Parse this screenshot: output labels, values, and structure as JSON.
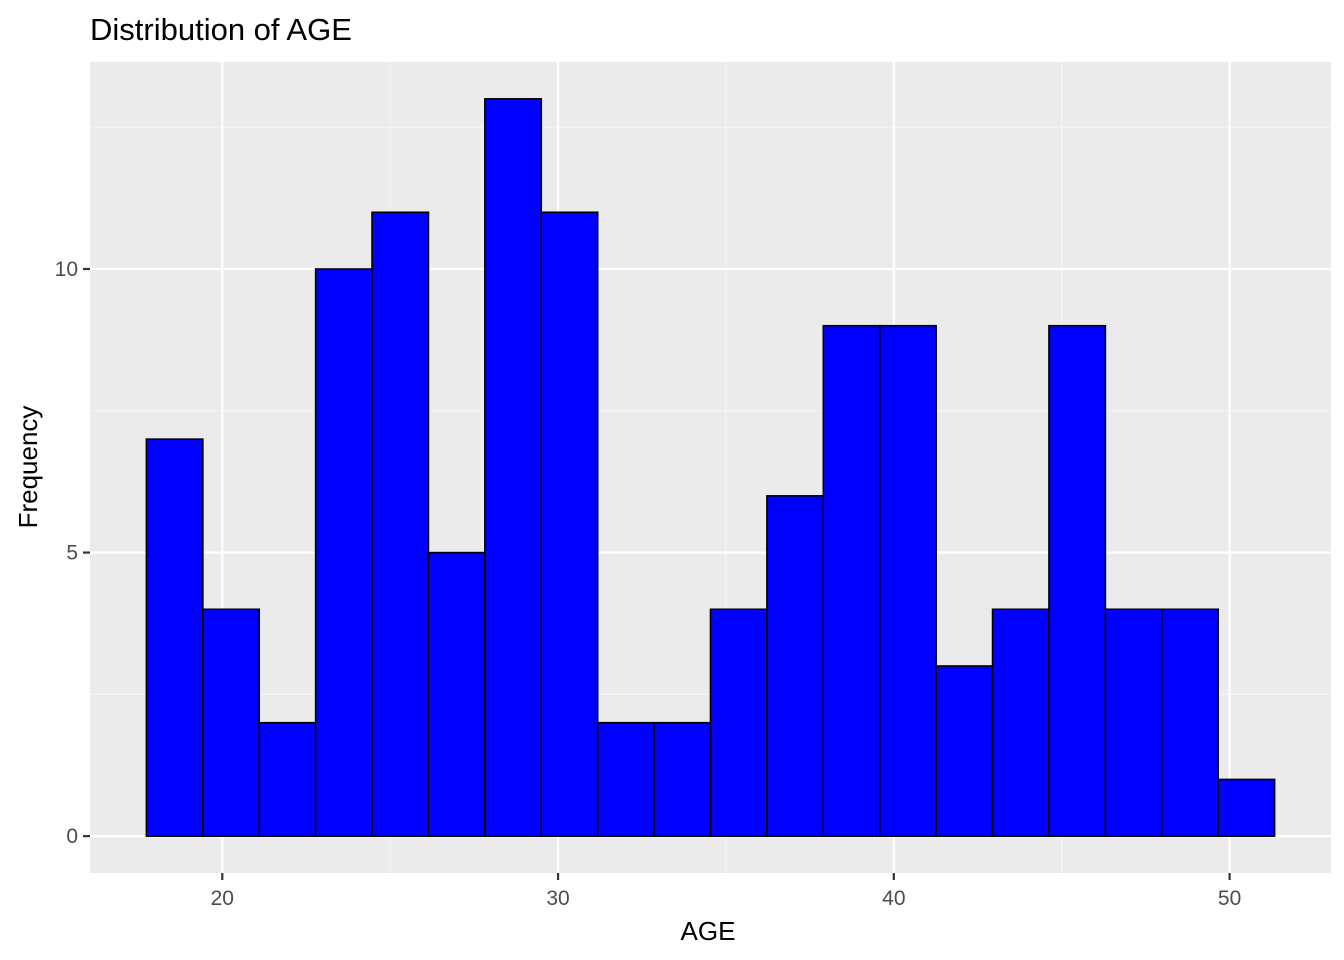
{
  "chart_data": {
    "type": "bar",
    "title": "Distribution of AGE",
    "xlabel": "AGE",
    "ylabel": "Frequency",
    "bins": [
      {
        "start": 17.74,
        "end": 19.42,
        "count": 7
      },
      {
        "start": 19.42,
        "end": 21.1,
        "count": 4
      },
      {
        "start": 21.1,
        "end": 22.78,
        "count": 2
      },
      {
        "start": 22.78,
        "end": 24.46,
        "count": 10
      },
      {
        "start": 24.46,
        "end": 26.14,
        "count": 11
      },
      {
        "start": 26.14,
        "end": 27.82,
        "count": 5
      },
      {
        "start": 27.82,
        "end": 29.5,
        "count": 13
      },
      {
        "start": 29.5,
        "end": 31.18,
        "count": 11
      },
      {
        "start": 31.18,
        "end": 32.86,
        "count": 2
      },
      {
        "start": 32.86,
        "end": 34.54,
        "count": 2
      },
      {
        "start": 34.54,
        "end": 36.22,
        "count": 4
      },
      {
        "start": 36.22,
        "end": 37.9,
        "count": 6
      },
      {
        "start": 37.9,
        "end": 39.58,
        "count": 9
      },
      {
        "start": 39.58,
        "end": 41.26,
        "count": 9
      },
      {
        "start": 41.26,
        "end": 42.94,
        "count": 3
      },
      {
        "start": 42.94,
        "end": 44.62,
        "count": 4
      },
      {
        "start": 44.62,
        "end": 46.3,
        "count": 9
      },
      {
        "start": 46.3,
        "end": 47.98,
        "count": 4
      },
      {
        "start": 47.98,
        "end": 49.66,
        "count": 4
      },
      {
        "start": 49.66,
        "end": 51.34,
        "count": 1
      }
    ],
    "xlim": [
      16.06,
      53.02
    ],
    "ylim": [
      -0.65,
      13.65
    ],
    "x_ticks": [
      20,
      30,
      40,
      50
    ],
    "x_tick_labels": [
      "20",
      "30",
      "40",
      "50"
    ],
    "x_minor_ticks": [
      25,
      35,
      45
    ],
    "y_ticks": [
      0,
      5,
      10
    ],
    "y_tick_labels": [
      "0",
      "5",
      "10"
    ],
    "y_minor_ticks": [
      2.5,
      7.5,
      12.5
    ],
    "grid": true,
    "legend": "none",
    "colors": {
      "bar_fill": "#0000ff",
      "bar_outline": "#000000",
      "panel_background": "#ebebeb",
      "grid_major": "#ffffff",
      "grid_minor": "#f5f5f5",
      "tick_label": "#4d4d4d"
    }
  }
}
